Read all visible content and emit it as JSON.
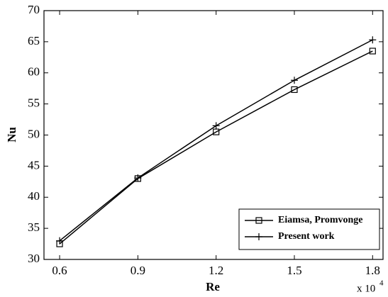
{
  "chart_data": {
    "type": "line",
    "x_label": "Re",
    "y_label": "Nu",
    "x_scale_label": "x 10",
    "x_scale_exponent": "4",
    "x": [
      0.6,
      0.9,
      1.2,
      1.5,
      1.8
    ],
    "series": [
      {
        "name": "Eiamsa, Promvonge",
        "color": "#000000",
        "marker": "square",
        "values": [
          32.5,
          43.0,
          50.5,
          57.3,
          63.5
        ]
      },
      {
        "name": "Present work",
        "color": "#000000",
        "marker": "plus",
        "values": [
          33.0,
          43.1,
          51.5,
          58.8,
          65.3
        ]
      }
    ],
    "xlim": [
      0.54,
      1.84
    ],
    "xticks": [
      0.6,
      0.9,
      1.2,
      1.5,
      1.8
    ],
    "ylim": [
      30,
      70
    ],
    "yticks": [
      30,
      35,
      40,
      45,
      50,
      55,
      60,
      65,
      70
    ],
    "legend": "lower-right",
    "grid": false
  }
}
